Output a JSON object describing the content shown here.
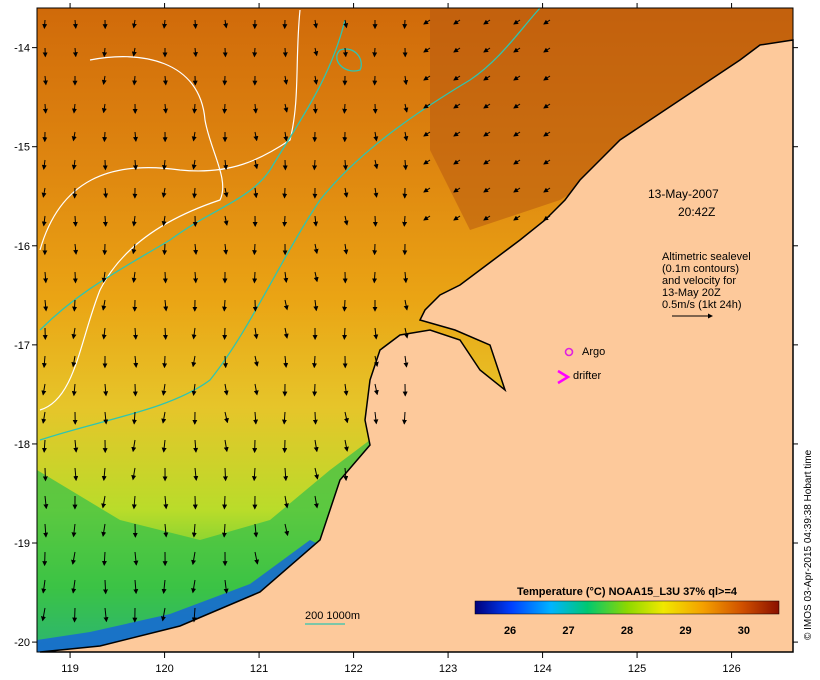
{
  "map": {
    "x_axis": {
      "ticks": [
        119,
        120,
        121,
        122,
        123,
        124,
        125,
        126
      ],
      "range": [
        118.65,
        126.65
      ]
    },
    "y_axis": {
      "ticks": [
        -14,
        -15,
        -16,
        -17,
        -18,
        -19,
        -20
      ],
      "range": [
        -20.1,
        -13.6
      ]
    },
    "date": "13-May-2007",
    "time": "20:42Z",
    "legend_text": {
      "line1": "Altimetric sealevel",
      "line2": "(0.1m contours)",
      "line3": "and velocity for",
      "line4": "13-May 20Z",
      "line5": "0.5m/s (1kt 24h)"
    },
    "argo_label": "Argo",
    "drifter_label": "drifter",
    "depth_contour_label": "200  1000m",
    "colorbar": {
      "title": "Temperature (°C) NOAA15_L3U 37% ql>=4",
      "ticks": [
        26,
        27,
        28,
        29,
        30
      ],
      "range": [
        25.4,
        30.6
      ]
    },
    "credit": "© IMOS 03-Apr-2015 04:39:38 Hobart time",
    "colors": {
      "land": "#fdc99b",
      "coast_outline": "#000000",
      "contour_sealevel": "#ffffff",
      "contour_depth": "#2fc5b0",
      "argo": "#e020e0",
      "drifter": "#ff00ff"
    }
  }
}
